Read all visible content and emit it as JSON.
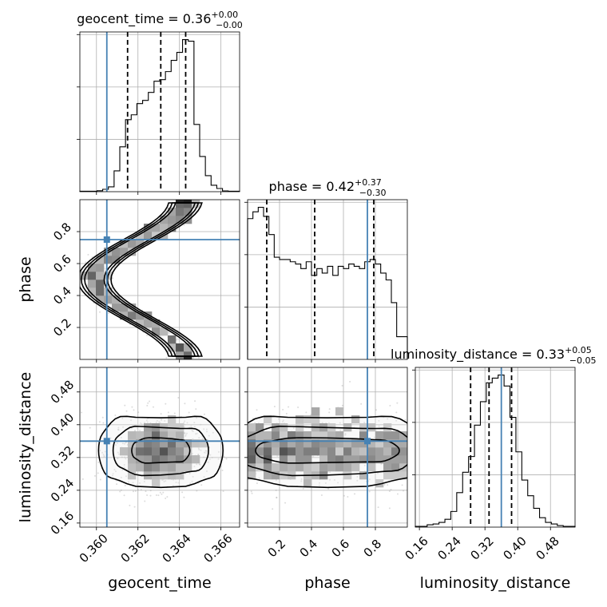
{
  "chart_data": {
    "type": "corner",
    "truth_color": "#4682b4",
    "contour_color": "#000000",
    "parameters": [
      {
        "name": "geocent_time",
        "axis_label": "geocent_time",
        "truth": 0.3605,
        "range": [
          0.3592,
          0.3669
        ],
        "ticks": [
          "0.360",
          "0.362",
          "0.364",
          "0.366"
        ],
        "quantiles": [
          0.3615,
          0.3631,
          0.3643
        ],
        "title": {
          "base": "geocent_time = 0.36",
          "up": "+0.00",
          "down": "−0.00"
        }
      },
      {
        "name": "phase",
        "axis_label": "phase",
        "truth": 0.75,
        "range": [
          0.0,
          1.0
        ],
        "ticks": [
          "0.2",
          "0.4",
          "0.6",
          "0.8"
        ],
        "quantiles": [
          0.12,
          0.42,
          0.79
        ],
        "title": {
          "base": "phase = 0.42",
          "up": "+0.37",
          "down": "−0.30"
        }
      },
      {
        "name": "luminosity_distance",
        "axis_label": "luminosity_distance",
        "truth": 0.36,
        "range": [
          0.15,
          0.54
        ],
        "ticks": [
          "0.16",
          "0.24",
          "0.32",
          "0.40",
          "0.48"
        ],
        "quantiles": [
          0.285,
          0.33,
          0.385
        ],
        "title": {
          "base": "luminosity_distance = 0.33",
          "up": "+0.05",
          "down": "−0.05"
        }
      }
    ],
    "histograms": {
      "geocent_time": {
        "values": [
          0.3,
          0.3,
          0.3,
          0.6,
          1.5,
          3,
          13,
          28,
          45,
          48,
          55,
          57,
          62,
          69,
          70,
          75,
          82,
          87,
          95,
          94,
          42,
          22,
          10,
          4,
          2,
          0.5,
          0.3,
          0.3
        ]
      },
      "phase": {
        "values": [
          62,
          65,
          67,
          63,
          55,
          45,
          44,
          44,
          43,
          42,
          40,
          43,
          37,
          40,
          38,
          41,
          37,
          41,
          40,
          42,
          41,
          40,
          43,
          44,
          42,
          38,
          35,
          25,
          10,
          10
        ]
      },
      "luminosity_distance": {
        "values": [
          0.5,
          0.5,
          1.5,
          2,
          3,
          5,
          10,
          22,
          35,
          45,
          65,
          80,
          92,
          95,
          97,
          90,
          70,
          48,
          30,
          20,
          12,
          6,
          3,
          2,
          1,
          0.5,
          0.5
        ]
      }
    }
  }
}
